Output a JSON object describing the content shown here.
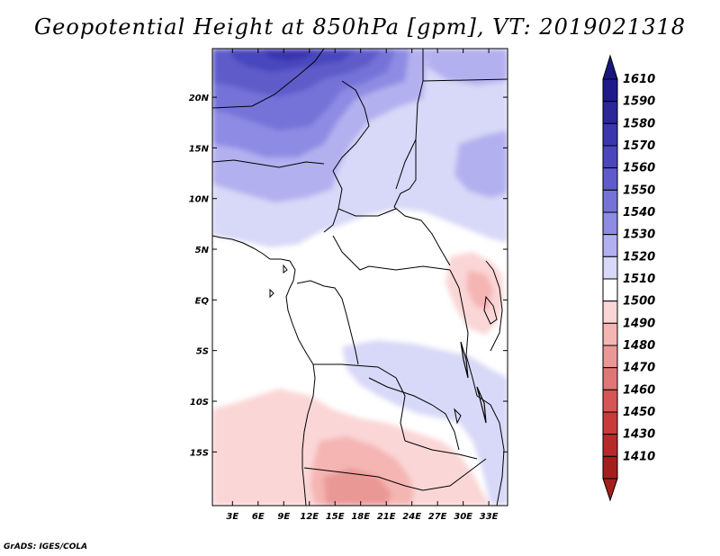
{
  "title": "Geopotential Height at 850hPa [gpm], VT: 2019021318",
  "credit": "GrADS: IGES/COLA",
  "map": {
    "lat_ticks": [
      {
        "label": "20N",
        "value": 20
      },
      {
        "label": "15N",
        "value": 15
      },
      {
        "label": "10N",
        "value": 10
      },
      {
        "label": "5N",
        "value": 5
      },
      {
        "label": "EQ",
        "value": 0
      },
      {
        "label": "5S",
        "value": -5
      },
      {
        "label": "10S",
        "value": -10
      },
      {
        "label": "15S",
        "value": -15
      }
    ],
    "lon_ticks": [
      {
        "label": "3E",
        "value": 3
      },
      {
        "label": "6E",
        "value": 6
      },
      {
        "label": "9E",
        "value": 9
      },
      {
        "label": "12E",
        "value": 12
      },
      {
        "label": "15E",
        "value": 15
      },
      {
        "label": "18E",
        "value": 18
      },
      {
        "label": "21E",
        "value": 21
      },
      {
        "label": "24E",
        "value": 24
      },
      {
        "label": "27E",
        "value": 27
      },
      {
        "label": "30E",
        "value": 30
      },
      {
        "label": "33E",
        "value": 33
      }
    ]
  },
  "colorbar": {
    "levels": [
      {
        "label": "1610",
        "color": "#1e1a8c"
      },
      {
        "label": "1590",
        "color": "#2a279a"
      },
      {
        "label": "1580",
        "color": "#3a36ae"
      },
      {
        "label": "1570",
        "color": "#4a47bd"
      },
      {
        "label": "1560",
        "color": "#5e5cca"
      },
      {
        "label": "1550",
        "color": "#7573d8"
      },
      {
        "label": "1540",
        "color": "#8d8be3"
      },
      {
        "label": "1530",
        "color": "#b2b0ef"
      },
      {
        "label": "1520",
        "color": "#d8d8f8"
      },
      {
        "label": "1510",
        "color": "#ffffff"
      },
      {
        "label": "1500",
        "color": "#fbd6d6"
      },
      {
        "label": "1490",
        "color": "#f4b5b3"
      },
      {
        "label": "1480",
        "color": "#ea9896"
      },
      {
        "label": "1470",
        "color": "#e07676"
      },
      {
        "label": "1460",
        "color": "#d65555"
      },
      {
        "label": "1450",
        "color": "#c93b3b"
      },
      {
        "label": "1430",
        "color": "#b72a2a"
      },
      {
        "label": "1410",
        "color": "#a51e1e"
      }
    ],
    "top_arrow_color": "#1a1680",
    "bottom_arrow_color": "#a51e1e"
  }
}
